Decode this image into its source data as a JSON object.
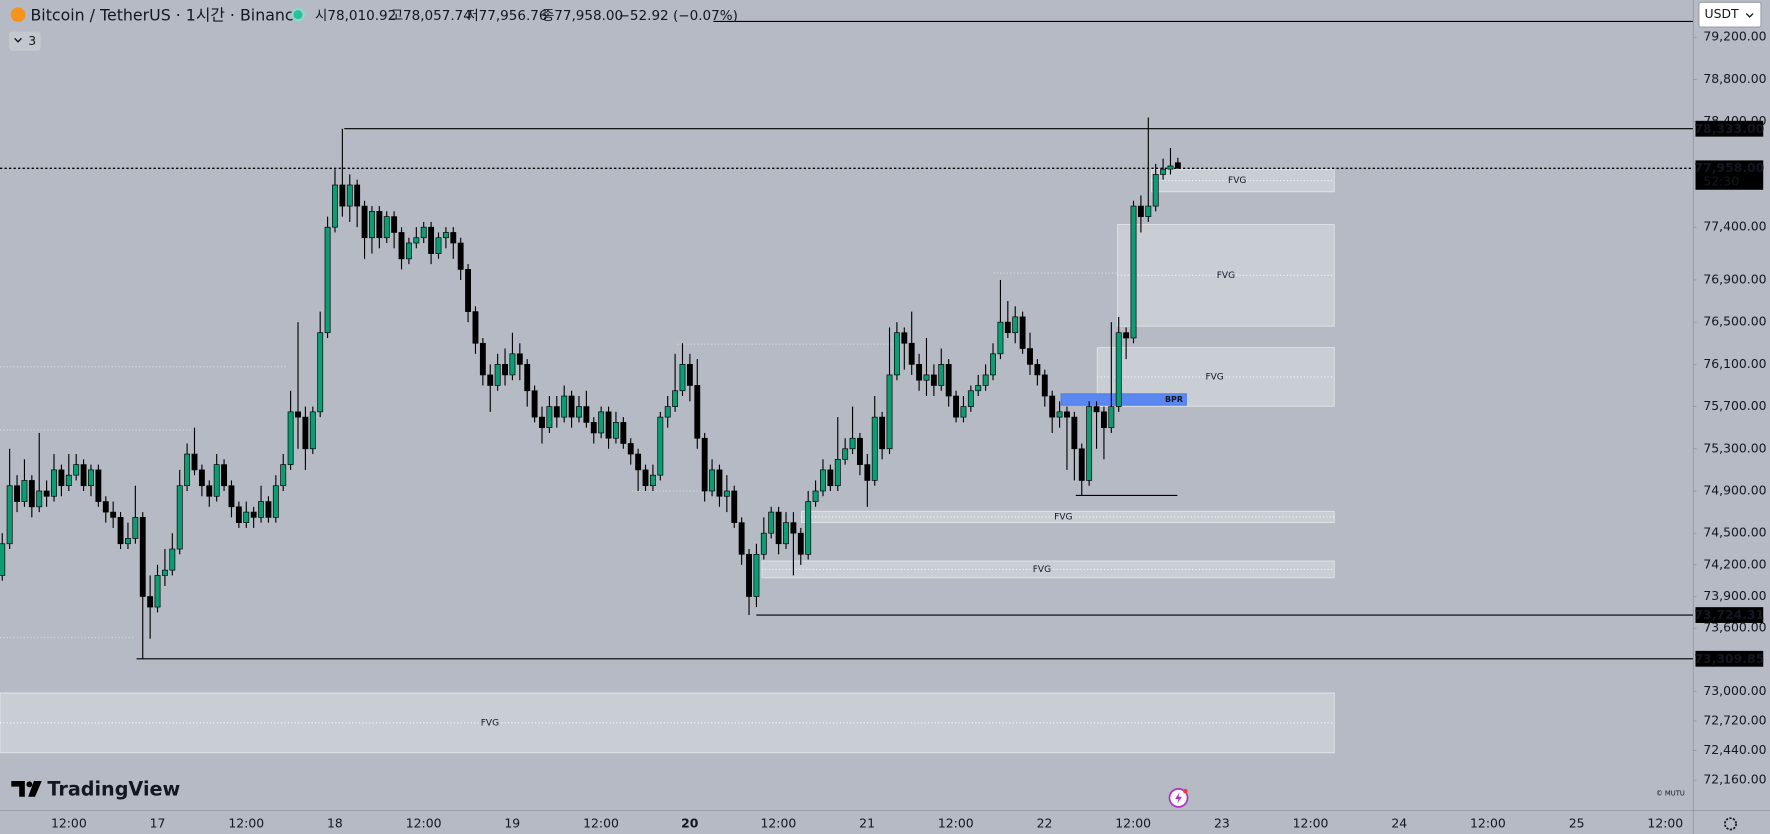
{
  "chart_data": {
    "type": "candlestick",
    "title": "Bitcoin / TetherUS · 1시간 · Binance",
    "ohlc_labels": [
      "시78,010.92",
      "고78,057.74",
      "저77,956.76",
      "종77,958.00"
    ],
    "change_label": "−52.92 (−0.07%)",
    "indicator_count": "3",
    "currency": "USDT",
    "brand": "TradingView",
    "watermark": "© MUTU",
    "up_color": "#0b9d74",
    "down_color": "#000000",
    "ylim": [
      71874,
      79553
    ],
    "yticks": [
      {
        "value": 79200,
        "label": "79,200.00"
      },
      {
        "value": 78800,
        "label": "78,800.00"
      },
      {
        "value": 78400,
        "label": "78,400.00"
      },
      {
        "value": 77400,
        "label": "77,400.00"
      },
      {
        "value": 76900,
        "label": "76,900.00"
      },
      {
        "value": 76500,
        "label": "76,500.00"
      },
      {
        "value": 76100,
        "label": "76,100.00"
      },
      {
        "value": 75700,
        "label": "75,700.00"
      },
      {
        "value": 75300,
        "label": "75,300.00"
      },
      {
        "value": 74900,
        "label": "74,900.00"
      },
      {
        "value": 74500,
        "label": "74,500.00"
      },
      {
        "value": 74200,
        "label": "74,200.00"
      },
      {
        "value": 73900,
        "label": "73,900.00"
      },
      {
        "value": 73600,
        "label": "73,600.00"
      },
      {
        "value": 73000,
        "label": "73,000.00"
      },
      {
        "value": 72720,
        "label": "72,720.00"
      },
      {
        "value": 72440,
        "label": "72,440.00"
      },
      {
        "value": 72160,
        "label": "72,160.00"
      }
    ],
    "xticks": [
      "12:00",
      "17",
      "12:00",
      "18",
      "12:00",
      "19",
      "12:00",
      "20",
      "12:00",
      "21",
      "12:00",
      "22",
      "12:00",
      "23",
      "12:00",
      "24",
      "12:00",
      "25",
      "12:00"
    ],
    "price_lines": [
      {
        "value": 78333,
        "label": "78,333.00"
      },
      {
        "value": 73724.31,
        "label": "73,724.31"
      },
      {
        "value": 73309.85,
        "label": "73,309.85"
      }
    ],
    "current_price": {
      "value": 77958,
      "label": "77,958.00",
      "countdown": "52:30"
    },
    "zones": [
      {
        "label": "FVG",
        "top": 77949,
        "bottom": 77735
      },
      {
        "label": "FVG",
        "top": 77425,
        "bottom": 76462
      },
      {
        "label": "FVG",
        "top": 76259,
        "bottom": 75703
      },
      {
        "label": "FVG",
        "top": 74708,
        "bottom": 74601
      },
      {
        "label": "FVG",
        "top": 74237,
        "bottom": 74077
      },
      {
        "label": "FVG",
        "top": 72986,
        "bottom": 72419
      },
      {
        "label": "BPR",
        "top": 75821,
        "bottom": 75713
      }
    ],
    "open": [
      74100,
      74400,
      74950,
      74800,
      75000,
      74750,
      74900,
      74850,
      75100,
      74950,
      75050,
      75150,
      74950,
      75100,
      74800,
      74700,
      74650,
      74400,
      74450,
      74650,
      73900,
      73800,
      74100,
      74150,
      74350,
      74950,
      75250,
      75100,
      74950,
      74850,
      75150,
      74950,
      74750,
      74600,
      74700,
      74650,
      74800,
      74650,
      74950,
      75150,
      75650,
      75600,
      75300,
      75650,
      76400,
      77400,
      77800,
      77600,
      77800,
      77600,
      77300,
      77550,
      77300,
      77500,
      77350,
      77100,
      77250,
      77300,
      77400,
      77150,
      77300,
      77350,
      77250,
      77000,
      76600,
      76300,
      76000,
      75900,
      76100,
      76000,
      76200,
      76100,
      75850,
      75600,
      75500,
      75700,
      75600,
      75800,
      75600,
      75700,
      75550,
      75450,
      75650,
      75400,
      75550,
      75350,
      75250,
      75100,
      74950,
      75050,
      75600,
      75700,
      75850,
      76100,
      75900,
      75400,
      74900,
      75100,
      74850,
      74900,
      74600,
      74300,
      73900,
      74300,
      74500,
      74700,
      74400,
      74600,
      74500,
      74300,
      74800,
      74900,
      75100,
      74950,
      75200,
      75300,
      75400,
      75150,
      75000,
      75600,
      75300,
      76000,
      76400,
      76300,
      76100,
      75950,
      76000,
      75900,
      76100,
      75800,
      75600,
      75700,
      75850,
      75900,
      76000,
      76200,
      76500,
      76400,
      76550,
      76250,
      76100,
      76000,
      75800,
      75600,
      75650,
      75600,
      75300,
      75000,
      75700,
      75650,
      75500,
      75700,
      76400,
      76350,
      77600,
      77500,
      77600,
      77900,
      77950,
      78010.92
    ],
    "high": [
      74500,
      75300,
      75050,
      75200,
      75050,
      75450,
      75000,
      75250,
      75150,
      75250,
      75250,
      75200,
      75150,
      75150,
      74850,
      74800,
      74700,
      74600,
      74950,
      74700,
      74100,
      74200,
      74350,
      74500,
      75100,
      75350,
      75500,
      75150,
      75000,
      75250,
      75200,
      75000,
      74800,
      74800,
      74750,
      74950,
      74850,
      75050,
      75250,
      75850,
      76500,
      75700,
      75700,
      76600,
      77500,
      77950,
      78333,
      77900,
      77850,
      77650,
      77600,
      77600,
      77550,
      77550,
      77400,
      77300,
      77400,
      77450,
      77450,
      77350,
      77400,
      77400,
      77300,
      77050,
      76650,
      76350,
      76100,
      76200,
      76250,
      76400,
      76300,
      76150,
      75900,
      75700,
      75800,
      75800,
      75900,
      75850,
      75800,
      75850,
      75600,
      75700,
      75700,
      75650,
      75600,
      75400,
      75300,
      75150,
      75150,
      75650,
      75800,
      76200,
      76300,
      76200,
      76150,
      75450,
      75200,
      75150,
      75050,
      74950,
      74650,
      74350,
      74400,
      74650,
      74750,
      74750,
      74700,
      74700,
      74550,
      74900,
      75000,
      75200,
      75150,
      75600,
      75400,
      75700,
      75450,
      75250,
      75800,
      75650,
      76450,
      76500,
      76450,
      76600,
      76200,
      76350,
      76100,
      76250,
      76150,
      75850,
      75800,
      75900,
      76000,
      76100,
      76300,
      76900,
      76700,
      76650,
      76600,
      76400,
      76150,
      76050,
      75850,
      75750,
      75700,
      75650,
      75350,
      75750,
      75750,
      75700,
      76500,
      76550,
      76450,
      77650,
      77700,
      78440,
      78000,
      78050,
      78150,
      78057.74
    ],
    "low": [
      74050,
      74350,
      74700,
      74750,
      74650,
      74700,
      74750,
      74800,
      74850,
      74900,
      75000,
      74900,
      74850,
      74750,
      74600,
      74550,
      74350,
      74350,
      74400,
      73309.85,
      73500,
      73750,
      74000,
      74100,
      74300,
      74900,
      75050,
      74850,
      74750,
      74800,
      74900,
      74650,
      74550,
      74550,
      74550,
      74600,
      74600,
      74600,
      74900,
      75100,
      75300,
      75100,
      75250,
      75600,
      76350,
      77350,
      77500,
      77450,
      77400,
      77100,
      77150,
      77200,
      77250,
      77200,
      77000,
      77050,
      77200,
      77250,
      77050,
      77100,
      77200,
      77100,
      76900,
      76500,
      76200,
      75900,
      75650,
      75850,
      75900,
      75950,
      75950,
      75700,
      75550,
      75350,
      75450,
      75500,
      75550,
      75500,
      75550,
      75500,
      75350,
      75400,
      75300,
      75350,
      75300,
      75150,
      74900,
      74900,
      74900,
      75000,
      75500,
      75650,
      75800,
      75750,
      75300,
      74800,
      74850,
      74750,
      74700,
      74550,
      74200,
      73724.31,
      73800,
      74250,
      74450,
      74300,
      74350,
      74100,
      74200,
      74250,
      74750,
      74850,
      74900,
      74900,
      75150,
      75250,
      75050,
      74750,
      74950,
      75200,
      75250,
      75950,
      76050,
      76000,
      75850,
      75800,
      75800,
      75850,
      75700,
      75550,
      75550,
      75650,
      75800,
      75850,
      75950,
      76150,
      76350,
      76300,
      76200,
      76000,
      75900,
      75700,
      75450,
      75500,
      75100,
      75000,
      74860,
      74950,
      75300,
      75200,
      75450,
      75650,
      76150,
      76300,
      77350,
      77450,
      77550,
      77850,
      77900,
      77956.76
    ],
    "close": [
      74400,
      74950,
      74800,
      75000,
      74750,
      74900,
      74850,
      75100,
      74950,
      75050,
      75150,
      74950,
      75100,
      74800,
      74700,
      74650,
      74400,
      74450,
      74650,
      73900,
      73800,
      74100,
      74150,
      74350,
      74950,
      75250,
      75100,
      74950,
      74850,
      75150,
      74950,
      74750,
      74600,
      74700,
      74650,
      74800,
      74650,
      74950,
      75150,
      75650,
      75600,
      75300,
      75650,
      76400,
      77400,
      77800,
      77600,
      77800,
      77600,
      77300,
      77550,
      77300,
      77500,
      77350,
      77100,
      77250,
      77300,
      77400,
      77150,
      77300,
      77350,
      77250,
      77000,
      76600,
      76300,
      76000,
      75900,
      76100,
      76000,
      76200,
      76100,
      75850,
      75600,
      75500,
      75700,
      75600,
      75800,
      75600,
      75700,
      75550,
      75450,
      75650,
      75400,
      75550,
      75350,
      75250,
      75100,
      74950,
      75050,
      75600,
      75700,
      75850,
      76100,
      75900,
      75400,
      74900,
      75100,
      74850,
      74900,
      74600,
      74300,
      73900,
      74300,
      74500,
      74700,
      74400,
      74600,
      74500,
      74300,
      74800,
      74900,
      75100,
      74950,
      75200,
      75300,
      75400,
      75150,
      75000,
      75600,
      75300,
      76000,
      76400,
      76300,
      76100,
      75950,
      76000,
      75900,
      76100,
      75800,
      75600,
      75700,
      75850,
      75900,
      76000,
      76200,
      76500,
      76400,
      76550,
      76250,
      76100,
      76000,
      75800,
      75600,
      75650,
      75600,
      75300,
      75000,
      75700,
      75650,
      75500,
      75700,
      76400,
      76350,
      77600,
      77500,
      77600,
      77900,
      77950,
      77980,
      77958
    ]
  }
}
